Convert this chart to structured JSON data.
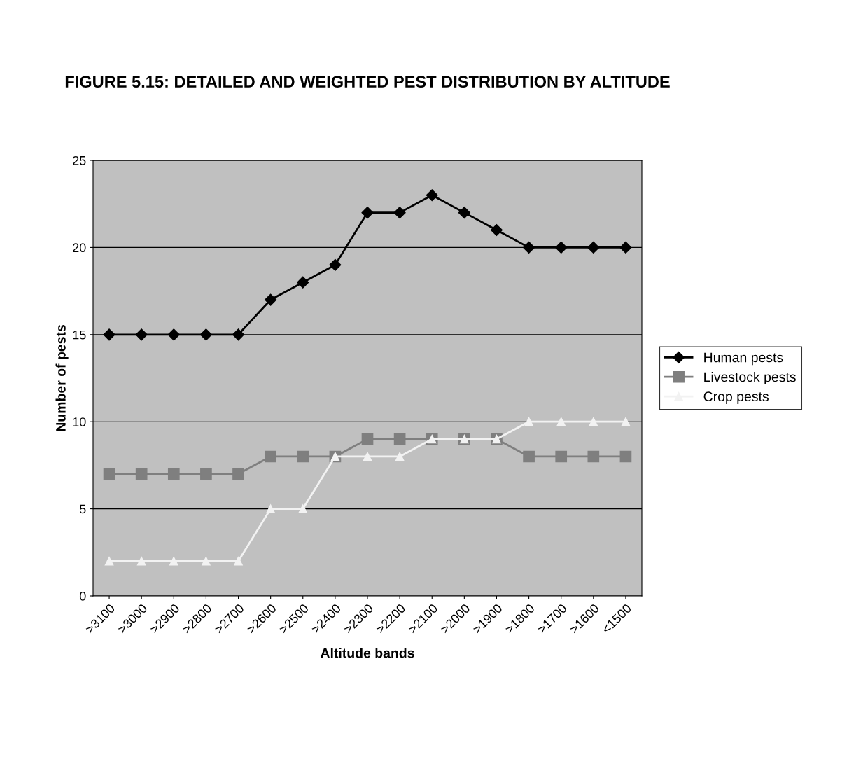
{
  "chart_data": {
    "type": "line",
    "title": "FIGURE 5.15: DETAILED AND WEIGHTED PEST DISTRIBUTION BY ALTITUDE",
    "xlabel": "Altitude bands",
    "ylabel": "Number of pests",
    "categories": [
      ">3100",
      ">3000",
      ">2900",
      ">2800",
      ">2700",
      ">2600",
      ">2500",
      ">2400",
      ">2300",
      ">2200",
      ">2100",
      ">2000",
      ">1900",
      ">1800",
      ">1700",
      ">1600",
      "<1500"
    ],
    "series": [
      {
        "name": "Human pests",
        "color": "#000000",
        "marker": "diamond",
        "values": [
          15,
          15,
          15,
          15,
          15,
          17,
          18,
          19,
          22,
          22,
          23,
          22,
          21,
          20,
          20,
          20,
          20
        ]
      },
      {
        "name": "Livestock pests",
        "color": "#7f7f7f",
        "marker": "square",
        "values": [
          7,
          7,
          7,
          7,
          7,
          8,
          8,
          8,
          9,
          9,
          9,
          9,
          9,
          8,
          8,
          8,
          8
        ]
      },
      {
        "name": "Crop pests",
        "color": "#f2f2f2",
        "marker": "triangle",
        "values": [
          2,
          2,
          2,
          2,
          2,
          5,
          5,
          8,
          8,
          8,
          9,
          9,
          9,
          10,
          10,
          10,
          10
        ]
      }
    ],
    "ylim": [
      0,
      25
    ],
    "yticks": [
      0,
      5,
      10,
      15,
      20,
      25
    ],
    "grid": "y",
    "legend": "right",
    "line_style": "solid"
  }
}
